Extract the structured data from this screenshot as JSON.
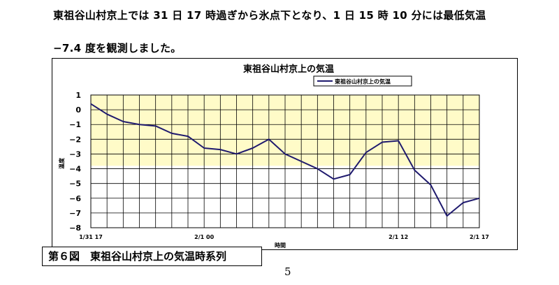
{
  "paragraph": {
    "line1": "東祖谷山村京上では 31 日 17 時過ぎから氷点下となり、1 日 15 時 10 分には最低気温",
    "line2": "−7.4 度を観測しました。"
  },
  "figure_caption": "第６図　東祖谷山村京上の気温時系列",
  "page_number": "5",
  "colors": {
    "line": "#1f1a6e",
    "shaded_band": "#fffbc8",
    "grid": "#000000"
  },
  "chart_data": {
    "type": "line",
    "title": "東祖谷山村京上の気温",
    "xlabel": "時間",
    "ylabel": "温度",
    "ylim": [
      -8,
      1
    ],
    "yticks": [
      "1",
      "0",
      "−1",
      "−2",
      "−3",
      "−4",
      "−5",
      "−6",
      "−7",
      "−8"
    ],
    "xtick_labels": [
      {
        "index": 0,
        "label": "1/31 17"
      },
      {
        "index": 7,
        "label": "2/1 00"
      },
      {
        "index": 19,
        "label": "2/1 12"
      },
      {
        "index": 24,
        "label": "2/1 17"
      }
    ],
    "shaded_range": [
      -3.8,
      1
    ],
    "grid": true,
    "legend_position": "top-right",
    "series": [
      {
        "name": "東祖谷山村京上の気温",
        "values": [
          0.4,
          -0.3,
          -0.8,
          -1.0,
          -1.1,
          -1.6,
          -1.8,
          -2.6,
          -2.7,
          -3.0,
          -2.6,
          -2.0,
          -3.0,
          -3.5,
          -4.0,
          -4.7,
          -4.4,
          -2.9,
          -2.2,
          -2.1,
          -4.1,
          -5.1,
          -7.2,
          -6.3,
          -6.0
        ]
      }
    ]
  }
}
